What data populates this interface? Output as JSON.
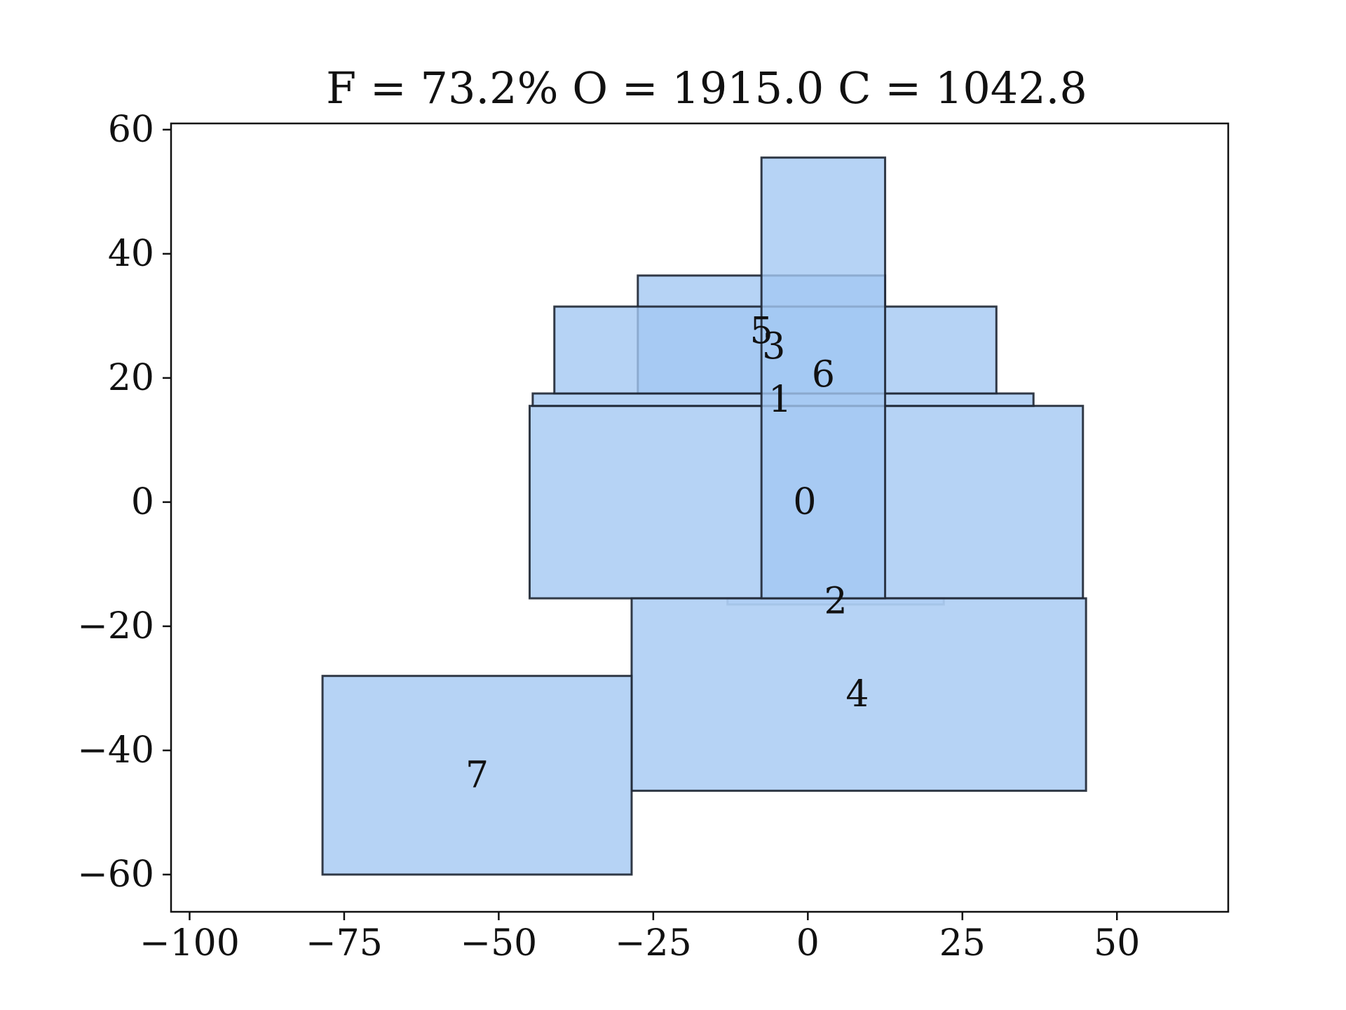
{
  "chart_data": {
    "type": "rectangle-layout",
    "title": "F = 73.2%    O = 1915.0    C = 1042.8",
    "xlabel": "",
    "ylabel": "",
    "xlim": [
      -103,
      68
    ],
    "ylim": [
      -66,
      61
    ],
    "xticks": [
      -100,
      -75,
      -50,
      -25,
      0,
      25,
      50
    ],
    "xtick_labels": [
      "−100",
      "−75",
      "−50",
      "−25",
      "0",
      "25",
      "50"
    ],
    "yticks": [
      -60,
      -40,
      -20,
      0,
      20,
      40,
      60
    ],
    "ytick_labels": [
      "−60",
      "−40",
      "−20",
      "0",
      "20",
      "40",
      "60"
    ],
    "grid": false,
    "legend": "none",
    "colors": {
      "fill": "#a4c8f2",
      "edge": "#1e2633",
      "text": "#111111",
      "background": "#ffffff"
    },
    "rectangles": [
      {
        "label": "0",
        "x0": -45,
        "x1": 44.5,
        "y0": -15.5,
        "y1": 15.5
      },
      {
        "label": "1",
        "x0": -44.5,
        "x1": 36.5,
        "y0": 15.5,
        "y1": 17.5
      },
      {
        "label": "2",
        "x0": -13,
        "x1": 22,
        "y0": -16.5,
        "y1": -15.5,
        "faint": true
      },
      {
        "label": "3",
        "x0": -27.5,
        "x1": 12.5,
        "y0": 17.5,
        "y1": 36.5
      },
      {
        "label": "4",
        "x0": -28.5,
        "x1": 45,
        "y0": -46.5,
        "y1": -15.5
      },
      {
        "label": "5",
        "x0": -41,
        "x1": 30.5,
        "y0": 17.5,
        "y1": 31.5
      },
      {
        "label": "6",
        "x0": -7.5,
        "x1": 12.5,
        "y0": -15.5,
        "y1": 55.5
      },
      {
        "label": "7",
        "x0": -78.5,
        "x1": -28.5,
        "y0": -60,
        "y1": -28
      }
    ],
    "labels": [
      {
        "text": "0",
        "x": -0.5,
        "y": 0
      },
      {
        "text": "1",
        "x": -4.5,
        "y": 16.5
      },
      {
        "text": "2",
        "x": 4.5,
        "y": -16
      },
      {
        "text": "3",
        "x": -5.5,
        "y": 25
      },
      {
        "text": "4",
        "x": 8,
        "y": -31
      },
      {
        "text": "5",
        "x": -7.5,
        "y": 27.5
      },
      {
        "text": "6",
        "x": 2.5,
        "y": 20.5
      },
      {
        "text": "7",
        "x": -53.5,
        "y": -44
      }
    ]
  }
}
